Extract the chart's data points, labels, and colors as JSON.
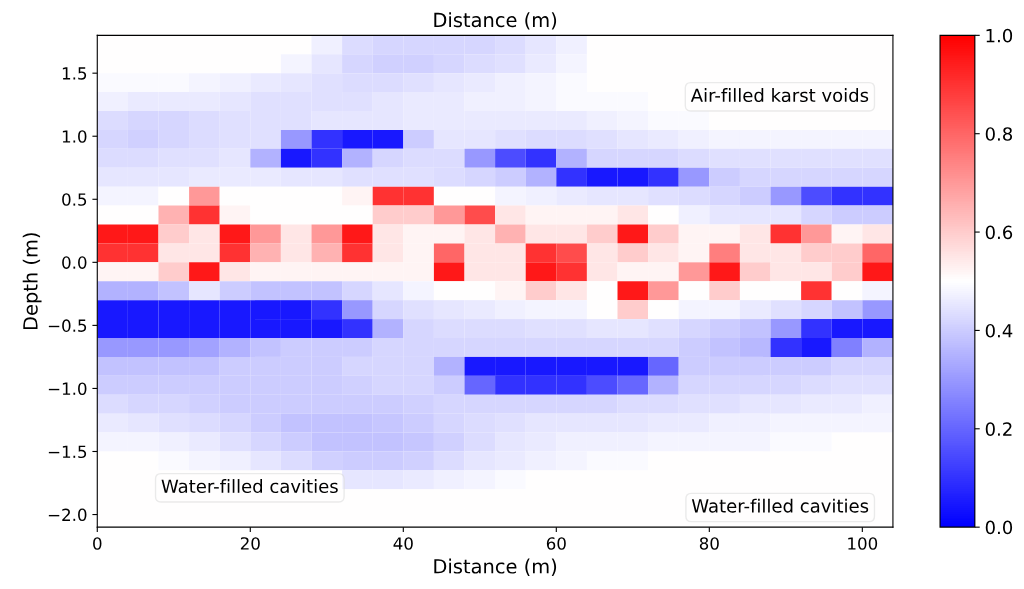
{
  "chart_data": {
    "type": "heatmap",
    "title": "Distance (m)",
    "xlabel": "Distance (m)",
    "ylabel": "Depth (m)",
    "x": [
      2,
      6,
      10,
      14,
      18,
      22,
      26,
      30,
      34,
      38,
      42,
      46,
      50,
      54,
      58,
      62,
      66,
      70,
      74,
      78,
      82,
      86,
      90,
      94,
      98,
      102
    ],
    "y": [
      1.725,
      1.575,
      1.425,
      1.275,
      1.125,
      0.975,
      0.825,
      0.675,
      0.525,
      0.375,
      0.225,
      0.075,
      -0.075,
      -0.225,
      -0.375,
      -0.525,
      -0.675,
      -0.825,
      -0.975,
      -1.125,
      -1.275,
      -1.425,
      -1.575,
      -1.725,
      -1.875,
      -2.025
    ],
    "cells": [
      [
        0.5,
        0.5,
        0.5,
        0.5,
        0.5,
        0.5,
        0.5,
        0.47,
        0.43,
        0.42,
        0.42,
        0.42,
        0.42,
        0.43,
        0.45,
        0.47,
        0.5,
        0.5,
        0.5,
        0.5,
        0.5,
        0.5,
        0.5,
        0.5,
        0.5,
        0.5
      ],
      [
        0.5,
        0.5,
        0.5,
        0.5,
        0.5,
        0.5,
        0.48,
        0.45,
        0.42,
        0.41,
        0.41,
        0.42,
        0.43,
        0.44,
        0.46,
        0.48,
        0.5,
        0.5,
        0.5,
        0.5,
        0.5,
        0.5,
        0.5,
        0.5,
        0.5,
        0.5
      ],
      [
        0.49,
        0.49,
        0.49,
        0.48,
        0.47,
        0.46,
        0.45,
        0.44,
        0.43,
        0.43,
        0.44,
        0.45,
        0.46,
        0.47,
        0.48,
        0.49,
        0.5,
        0.5,
        0.5,
        0.5,
        0.5,
        0.5,
        0.5,
        0.5,
        0.5,
        0.5
      ],
      [
        0.47,
        0.46,
        0.46,
        0.46,
        0.45,
        0.44,
        0.44,
        0.44,
        0.44,
        0.45,
        0.46,
        0.46,
        0.47,
        0.47,
        0.48,
        0.49,
        0.49,
        0.49,
        0.5,
        0.5,
        0.5,
        0.5,
        0.5,
        0.5,
        0.5,
        0.5
      ],
      [
        0.43,
        0.42,
        0.42,
        0.43,
        0.44,
        0.44,
        0.44,
        0.45,
        0.45,
        0.45,
        0.46,
        0.46,
        0.46,
        0.46,
        0.46,
        0.46,
        0.47,
        0.48,
        0.49,
        0.49,
        0.5,
        0.5,
        0.5,
        0.5,
        0.5,
        0.5
      ],
      [
        0.42,
        0.41,
        0.42,
        0.43,
        0.44,
        0.44,
        0.3,
        0.1,
        0.05,
        0.05,
        0.4,
        0.45,
        0.45,
        0.44,
        0.43,
        0.43,
        0.44,
        0.45,
        0.46,
        0.47,
        0.48,
        0.48,
        0.48,
        0.48,
        0.48,
        0.48
      ],
      [
        0.43,
        0.43,
        0.44,
        0.44,
        0.45,
        0.35,
        0.05,
        0.1,
        0.35,
        0.42,
        0.43,
        0.43,
        0.3,
        0.15,
        0.1,
        0.35,
        0.42,
        0.42,
        0.42,
        0.43,
        0.44,
        0.44,
        0.44,
        0.44,
        0.44,
        0.44
      ],
      [
        0.45,
        0.45,
        0.45,
        0.46,
        0.46,
        0.46,
        0.45,
        0.45,
        0.44,
        0.44,
        0.44,
        0.43,
        0.42,
        0.4,
        0.35,
        0.1,
        0.05,
        0.05,
        0.1,
        0.3,
        0.4,
        0.42,
        0.42,
        0.42,
        0.42,
        0.42
      ],
      [
        0.48,
        0.48,
        0.5,
        0.7,
        0.5,
        0.5,
        0.5,
        0.5,
        0.52,
        0.9,
        0.9,
        0.5,
        0.5,
        0.48,
        0.47,
        0.46,
        0.45,
        0.45,
        0.44,
        0.43,
        0.42,
        0.4,
        0.3,
        0.15,
        0.1,
        0.1
      ],
      [
        0.5,
        0.5,
        0.65,
        0.9,
        0.52,
        0.5,
        0.5,
        0.5,
        0.5,
        0.6,
        0.6,
        0.7,
        0.85,
        0.55,
        0.52,
        0.52,
        0.52,
        0.55,
        0.5,
        0.47,
        0.45,
        0.45,
        0.45,
        0.42,
        0.4,
        0.4
      ],
      [
        0.95,
        0.95,
        0.6,
        0.55,
        0.95,
        0.7,
        0.55,
        0.7,
        0.95,
        0.55,
        0.52,
        0.52,
        0.55,
        0.65,
        0.55,
        0.55,
        0.6,
        0.95,
        0.6,
        0.52,
        0.52,
        0.55,
        0.9,
        0.7,
        0.52,
        0.55
      ],
      [
        0.9,
        0.9,
        0.55,
        0.55,
        0.9,
        0.65,
        0.55,
        0.65,
        0.9,
        0.55,
        0.52,
        0.8,
        0.55,
        0.55,
        0.9,
        0.85,
        0.55,
        0.6,
        0.55,
        0.52,
        0.75,
        0.55,
        0.55,
        0.6,
        0.6,
        0.8
      ],
      [
        0.52,
        0.52,
        0.6,
        0.95,
        0.55,
        0.52,
        0.52,
        0.52,
        0.52,
        0.52,
        0.52,
        0.95,
        0.55,
        0.55,
        0.95,
        0.9,
        0.55,
        0.52,
        0.52,
        0.7,
        0.95,
        0.6,
        0.55,
        0.55,
        0.6,
        0.95
      ],
      [
        0.35,
        0.35,
        0.38,
        0.45,
        0.4,
        0.38,
        0.38,
        0.38,
        0.42,
        0.45,
        0.48,
        0.5,
        0.5,
        0.52,
        0.6,
        0.55,
        0.5,
        0.95,
        0.7,
        0.5,
        0.6,
        0.5,
        0.5,
        0.9,
        0.5,
        0.48
      ],
      [
        0.05,
        0.05,
        0.05,
        0.05,
        0.05,
        0.05,
        0.05,
        0.1,
        0.3,
        0.42,
        0.44,
        0.45,
        0.46,
        0.47,
        0.48,
        0.48,
        0.5,
        0.6,
        0.5,
        0.48,
        0.48,
        0.46,
        0.44,
        0.42,
        0.38,
        0.3
      ],
      [
        0.05,
        0.05,
        0.05,
        0.05,
        0.05,
        0.05,
        0.05,
        0.05,
        0.1,
        0.35,
        0.42,
        0.43,
        0.43,
        0.43,
        0.44,
        0.44,
        0.45,
        0.45,
        0.44,
        0.42,
        0.4,
        0.38,
        0.3,
        0.1,
        0.05,
        0.05
      ],
      [
        0.3,
        0.3,
        0.3,
        0.32,
        0.35,
        0.38,
        0.4,
        0.4,
        0.4,
        0.42,
        0.42,
        0.42,
        0.42,
        0.42,
        0.42,
        0.42,
        0.42,
        0.42,
        0.42,
        0.4,
        0.38,
        0.36,
        0.1,
        0.05,
        0.25,
        0.35
      ],
      [
        0.38,
        0.38,
        0.38,
        0.38,
        0.4,
        0.4,
        0.4,
        0.4,
        0.42,
        0.42,
        0.42,
        0.35,
        0.05,
        0.05,
        0.05,
        0.05,
        0.05,
        0.05,
        0.2,
        0.4,
        0.4,
        0.4,
        0.4,
        0.4,
        0.42,
        0.42
      ],
      [
        0.4,
        0.4,
        0.4,
        0.4,
        0.4,
        0.4,
        0.4,
        0.4,
        0.41,
        0.42,
        0.42,
        0.4,
        0.2,
        0.1,
        0.1,
        0.1,
        0.15,
        0.2,
        0.35,
        0.42,
        0.42,
        0.42,
        0.42,
        0.43,
        0.44,
        0.44
      ],
      [
        0.43,
        0.42,
        0.42,
        0.41,
        0.4,
        0.4,
        0.4,
        0.4,
        0.4,
        0.4,
        0.41,
        0.42,
        0.42,
        0.42,
        0.42,
        0.42,
        0.42,
        0.43,
        0.43,
        0.44,
        0.44,
        0.45,
        0.45,
        0.46,
        0.46,
        0.47
      ],
      [
        0.46,
        0.45,
        0.44,
        0.43,
        0.42,
        0.4,
        0.38,
        0.38,
        0.38,
        0.39,
        0.4,
        0.42,
        0.43,
        0.44,
        0.45,
        0.45,
        0.45,
        0.45,
        0.46,
        0.46,
        0.47,
        0.47,
        0.48,
        0.48,
        0.48,
        0.48
      ],
      [
        0.48,
        0.48,
        0.47,
        0.46,
        0.44,
        0.42,
        0.4,
        0.38,
        0.38,
        0.38,
        0.39,
        0.41,
        0.43,
        0.45,
        0.46,
        0.47,
        0.47,
        0.47,
        0.48,
        0.48,
        0.48,
        0.48,
        0.49,
        0.49,
        0.5,
        0.5
      ],
      [
        0.5,
        0.5,
        0.49,
        0.48,
        0.47,
        0.45,
        0.43,
        0.41,
        0.4,
        0.4,
        0.41,
        0.43,
        0.45,
        0.46,
        0.47,
        0.48,
        0.49,
        0.49,
        0.5,
        0.5,
        0.5,
        0.5,
        0.5,
        0.5,
        0.5,
        0.5
      ],
      [
        0.5,
        0.5,
        0.5,
        0.5,
        0.5,
        0.5,
        0.5,
        0.5,
        0.45,
        0.45,
        0.46,
        0.47,
        0.48,
        0.49,
        0.5,
        0.5,
        0.5,
        0.5,
        0.5,
        0.5,
        0.5,
        0.5,
        0.5,
        0.5,
        0.5,
        0.5
      ],
      [
        0.5,
        0.5,
        0.5,
        0.5,
        0.5,
        0.5,
        0.5,
        0.5,
        0.5,
        0.5,
        0.5,
        0.5,
        0.5,
        0.5,
        0.5,
        0.5,
        0.5,
        0.5,
        0.5,
        0.5,
        0.5,
        0.5,
        0.5,
        0.5,
        0.5,
        0.5
      ],
      [
        0.5,
        0.5,
        0.5,
        0.5,
        0.5,
        0.5,
        0.5,
        0.5,
        0.5,
        0.5,
        0.5,
        0.5,
        0.5,
        0.5,
        0.5,
        0.5,
        0.5,
        0.5,
        0.5,
        0.5,
        0.5,
        0.5,
        0.5,
        0.5,
        0.5,
        0.5
      ]
    ],
    "colors": [
      "#0000ff",
      "#ffffff",
      "#ff0000"
    ],
    "xlim": [
      0,
      104
    ],
    "ylim": [
      -2.1,
      1.8
    ],
    "xticks": [
      0,
      20,
      40,
      60,
      80,
      100
    ],
    "yticks": [
      {
        "value": -2.0,
        "label": "−2.0"
      },
      {
        "value": -1.5,
        "label": "−1.5"
      },
      {
        "value": -1.0,
        "label": "−1.0"
      },
      {
        "value": -0.5,
        "label": "−0.5"
      },
      {
        "value": 0.0,
        "label": "0.0"
      },
      {
        "value": 0.5,
        "label": "0.5"
      },
      {
        "value": 1.0,
        "label": "1.0"
      },
      {
        "value": 1.5,
        "label": "1.5"
      }
    ],
    "clim": [
      0,
      1
    ],
    "cticks": [
      {
        "value": 0,
        "label": "0.0"
      },
      {
        "value": 0.2,
        "label": "0.2"
      },
      {
        "value": 0.4,
        "label": "0.4"
      },
      {
        "value": 0.6,
        "label": "0.6"
      },
      {
        "value": 0.8,
        "label": "0.8"
      },
      {
        "value": 1,
        "label": "1.0"
      }
    ],
    "annotations": [
      "Air-filled karst voids",
      "Water-filled cavities",
      "Water-filled cavities"
    ],
    "grid": false
  }
}
